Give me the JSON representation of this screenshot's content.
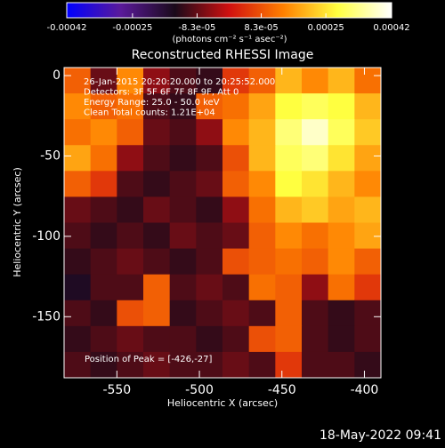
{
  "chart_data": {
    "type": "heatmap",
    "title": "Reconstructed RHESSI Image",
    "x_label": "Heliocentric X (arcsec)",
    "y_label": "Heliocentric Y (arcsec)",
    "colorbar_label": "(photons cm⁻² s⁻¹ asec⁻²)",
    "colormap": [
      "#0000ff",
      "#5a1a9a",
      "#1a0a1a",
      "#d01010",
      "#ff8000",
      "#ffff40",
      "#ffffff"
    ],
    "zlim": [
      -0.00042,
      0.00042
    ],
    "zticks": [
      -0.00042,
      -0.00025,
      {
        "value": -8.3e-05,
        "label": "-8.3e-05"
      },
      {
        "value": 8.3e-05,
        "label": "8.3e-05"
      },
      0.00025,
      0.00042
    ],
    "xlim": [
      -582,
      -390
    ],
    "ylim": [
      -188,
      5
    ],
    "xticks": [
      -550,
      -500,
      -450,
      -400
    ],
    "yticks": [
      0,
      -50,
      -100,
      -150
    ],
    "annotations": [
      "26-Jan-2015 20:20:20.000 to 20:25:52.000",
      "Detectors: 3F 5F 6F 7F 8F 9F, Att 0",
      "Energy Range: 25.0 - 50.0 keV",
      "Clean    Total counts: 1.21E+04"
    ],
    "peak_label": "Position of Peak = [-426,-27]",
    "footer": "18-May-2022 09:41",
    "z": [
      [
        0.0001,
        -8e-05,
        0.00015,
        -5e-05,
        -0.0001,
        -0.00012,
        5e-05,
        0.0001,
        0.0002,
        0.00015,
        0.0002,
        0.00012
      ],
      [
        0.00015,
        0.0001,
        0.00012,
        -0.0001,
        -0.00012,
        0.0001,
        0.00012,
        0.00018,
        0.00028,
        0.0003,
        0.00028,
        0.0002
      ],
      [
        0.00012,
        0.00015,
        0.0001,
        -8e-05,
        -0.0001,
        -5e-05,
        0.00015,
        0.0002,
        0.00032,
        0.00038,
        0.0003,
        0.00022
      ],
      [
        0.00018,
        0.00012,
        -5e-05,
        -0.0001,
        -0.00012,
        -0.0001,
        8e-05,
        0.0002,
        0.0003,
        0.00032,
        0.00025,
        0.00018
      ],
      [
        0.0001,
        5e-05,
        -0.0001,
        -0.00012,
        -0.0001,
        -8e-05,
        0.0001,
        0.00015,
        0.00028,
        0.00025,
        0.0002,
        0.00015
      ],
      [
        -8e-05,
        -0.0001,
        -0.00012,
        -8e-05,
        -0.0001,
        -0.00012,
        -5e-05,
        0.00012,
        0.0002,
        0.00022,
        0.00018,
        0.0002
      ],
      [
        -0.0001,
        -0.00012,
        -0.0001,
        -0.00012,
        -8e-05,
        -0.0001,
        -8e-05,
        0.0001,
        0.00015,
        0.00012,
        0.00015,
        0.00018
      ],
      [
        -0.00012,
        -0.0001,
        -8e-05,
        -0.0001,
        -0.00012,
        -0.0001,
        8e-05,
        0.0001,
        0.00012,
        0.0001,
        0.00015,
        0.0001
      ],
      [
        -0.00015,
        -0.0001,
        -0.0001,
        0.0001,
        -0.0001,
        -8e-05,
        -0.0001,
        0.00012,
        0.0001,
        -5e-05,
        0.00012,
        5e-05
      ],
      [
        -0.0001,
        -0.00012,
        8e-05,
        0.0001,
        -0.00012,
        -0.0001,
        -8e-05,
        -0.0001,
        0.0001,
        -0.0001,
        -0.00012,
        -0.0001
      ],
      [
        -0.00012,
        -0.0001,
        -8e-05,
        -0.0001,
        -0.0001,
        -0.00012,
        -0.0001,
        8e-05,
        0.0001,
        -0.0001,
        -0.00012,
        -0.0001
      ],
      [
        -0.0001,
        -0.00012,
        -0.0001,
        -8e-05,
        -0.0001,
        -0.0001,
        -8e-05,
        -0.0001,
        5e-05,
        -0.0001,
        -0.0001,
        -0.00012
      ]
    ]
  }
}
